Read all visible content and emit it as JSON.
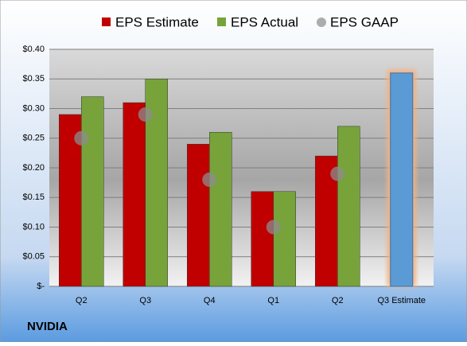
{
  "chart_data": {
    "type": "bar",
    "categories": [
      "Q2",
      "Q3",
      "Q4",
      "Q1",
      "Q2",
      "Q3 Estimate"
    ],
    "series": [
      {
        "name": "EPS Estimate",
        "color": "#c00000",
        "values": [
          0.29,
          0.31,
          0.24,
          0.16,
          0.22,
          0.36
        ]
      },
      {
        "name": "EPS Actual",
        "color": "#77a33a",
        "values": [
          0.32,
          0.35,
          0.26,
          0.16,
          0.27,
          null
        ]
      },
      {
        "name": "EPS GAAP",
        "color": "#8c8c8c",
        "values": [
          0.25,
          0.29,
          0.18,
          0.1,
          0.19,
          null
        ]
      }
    ],
    "highlight_color": "#5b9bd5",
    "highlight_glow": "#f4b183",
    "ylim": [
      0,
      0.4
    ],
    "yticks": [
      {
        "value": 0,
        "label": "$-"
      },
      {
        "value": 0.05,
        "label": "$0.05"
      },
      {
        "value": 0.1,
        "label": "$0.10"
      },
      {
        "value": 0.15,
        "label": "$0.15"
      },
      {
        "value": 0.2,
        "label": "$0.20"
      },
      {
        "value": 0.25,
        "label": "$0.25"
      },
      {
        "value": 0.3,
        "label": "$0.30"
      },
      {
        "value": 0.35,
        "label": "$0.35"
      },
      {
        "value": 0.4,
        "label": "$0.40"
      }
    ],
    "grid": true,
    "footer": "NVIDIA"
  }
}
